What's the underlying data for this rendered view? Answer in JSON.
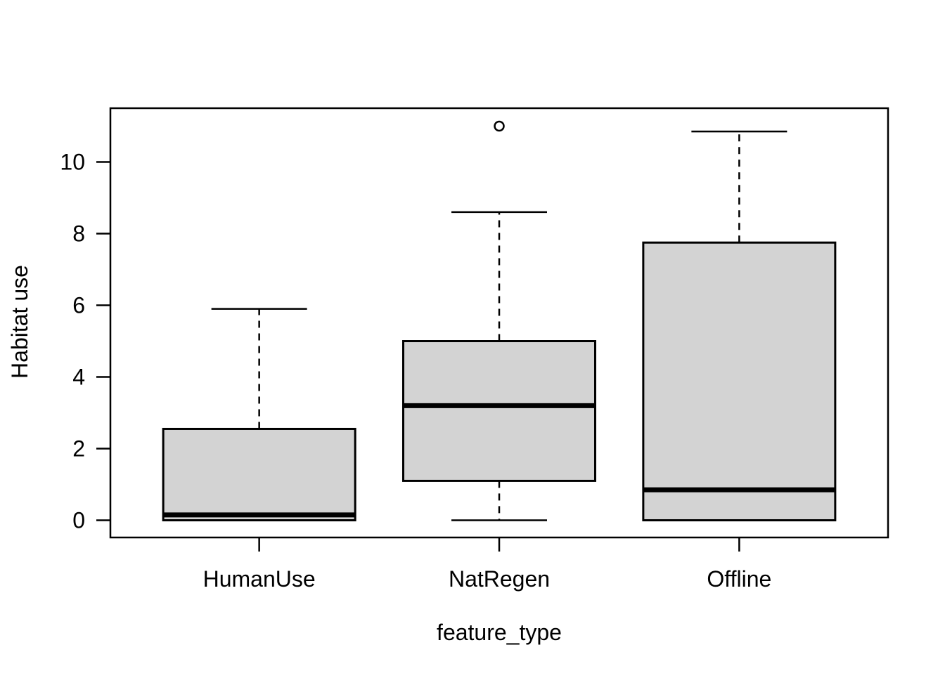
{
  "figure": {
    "background": "#ffffff",
    "kind": "r-base-boxplot"
  },
  "chart_data": {
    "type": "boxplot",
    "title": "",
    "xlabel": "feature_type",
    "ylabel": "Habitat use",
    "categories": [
      "HumanUse",
      "NatRegen",
      "Offline"
    ],
    "y_ticks": [
      0,
      2,
      4,
      6,
      8,
      10
    ],
    "ylim": [
      -0.48,
      11.5
    ],
    "grid": false,
    "legend": "none",
    "box_fill": "#d3d3d3",
    "stroke": "#000000",
    "series": [
      {
        "name": "HumanUse",
        "min": 0,
        "q1": 0,
        "median": 0.15,
        "q3": 2.55,
        "max": 5.9,
        "outliers": []
      },
      {
        "name": "NatRegen",
        "min": 0,
        "q1": 1.1,
        "median": 3.2,
        "q3": 5.0,
        "max": 8.6,
        "outliers": [
          11.0
        ]
      },
      {
        "name": "Offline",
        "min": 0,
        "q1": 0,
        "median": 0.85,
        "q3": 7.75,
        "max": 10.85,
        "outliers": []
      }
    ]
  }
}
